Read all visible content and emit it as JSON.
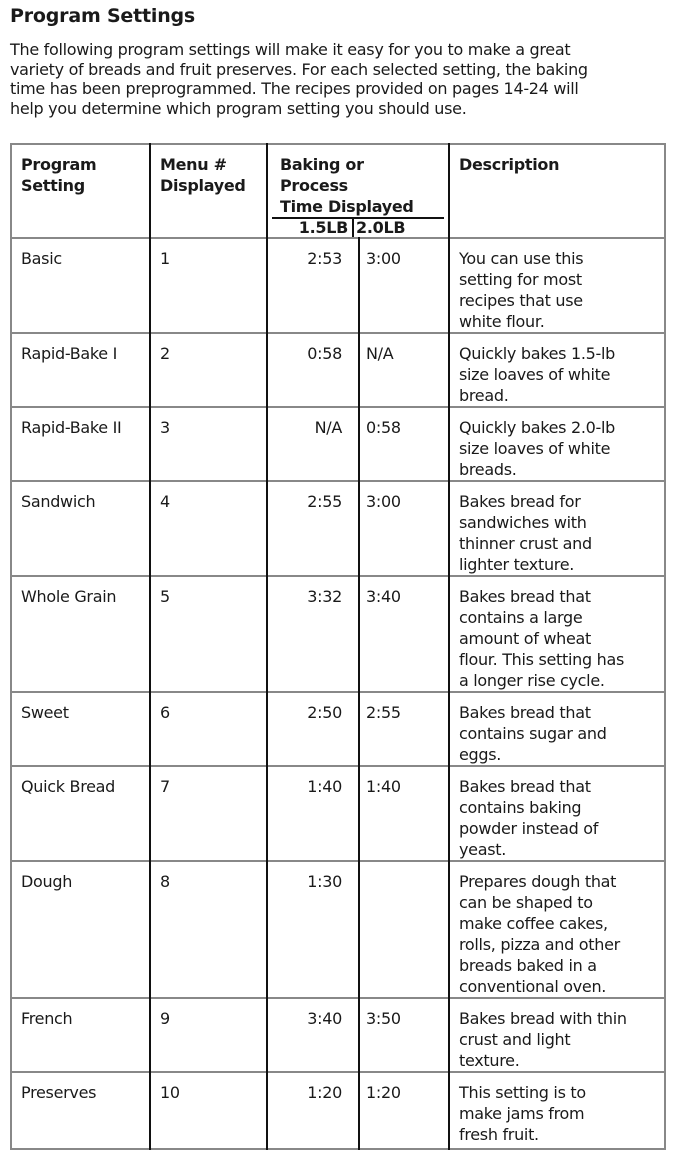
{
  "title": "Program Settings",
  "intro_lines": [
    "The following program settings will make it easy for you to make a great",
    "variety of breads and fruit preserves. For each selected setting, the baking",
    "time has been preprogrammed. The recipes provided on pages 14-24 will",
    "help you determine which program setting you should use."
  ],
  "table": {
    "headers": {
      "setting": [
        "Program",
        "Setting"
      ],
      "menu": [
        "Menu #",
        "Displayed"
      ],
      "time": "Baking or Process Time Displayed",
      "time_lines": [
        "Baking or Process",
        "Time Displayed"
      ],
      "sub_15": "1.5LB",
      "sub_20": "2.0LB",
      "description": "Description"
    },
    "rows": [
      {
        "setting": "Basic",
        "menu": "1",
        "t15": "2:53",
        "t20": "3:00",
        "desc": [
          "You can use this",
          "setting for most",
          "recipes that use",
          "white flour."
        ]
      },
      {
        "setting": "Rapid-Bake I",
        "menu": "2",
        "t15": "0:58",
        "t20": "N/A",
        "desc": [
          "Quickly bakes 1.5-lb",
          "size loaves of white",
          "bread."
        ]
      },
      {
        "setting": "Rapid-Bake II",
        "menu": "3",
        "t15": "N/A",
        "t20": "0:58",
        "desc": [
          "Quickly bakes 2.0-lb",
          "size loaves of white",
          "breads."
        ]
      },
      {
        "setting": "Sandwich",
        "menu": "4",
        "t15": "2:55",
        "t20": "3:00",
        "desc": [
          "Bakes bread for",
          "sandwiches with",
          "thinner crust and",
          "lighter texture."
        ]
      },
      {
        "setting": "Whole Grain",
        "menu": "5",
        "t15": "3:32",
        "t20": "3:40",
        "desc": [
          "Bakes bread that",
          "contains a large",
          "amount of wheat",
          "flour. This setting has",
          "a longer rise cycle."
        ]
      },
      {
        "setting": "Sweet",
        "menu": "6",
        "t15": "2:50",
        "t20": "2:55",
        "desc": [
          "Bakes bread that",
          "contains sugar and",
          "eggs."
        ]
      },
      {
        "setting": "Quick Bread",
        "menu": "7",
        "t15": "1:40",
        "t20": "1:40",
        "desc": [
          "Bakes bread that",
          "contains baking",
          "powder instead of",
          "yeast."
        ]
      },
      {
        "setting": "Dough",
        "menu": "8",
        "t15": "1:30",
        "t20": "",
        "desc": [
          "Prepares dough that",
          "can be shaped to",
          "make coffee cakes,",
          "rolls, pizza and other",
          "breads baked in a",
          "conventional oven."
        ]
      },
      {
        "setting": "French",
        "menu": "9",
        "t15": "3:40",
        "t20": "3:50",
        "desc": [
          "Bakes bread with thin",
          "crust and light",
          "texture."
        ]
      },
      {
        "setting": "Preserves",
        "menu": "10",
        "t15": "1:20",
        "t20": "1:20",
        "desc": [
          "This setting is to",
          "make jams from",
          "fresh fruit."
        ]
      }
    ]
  }
}
